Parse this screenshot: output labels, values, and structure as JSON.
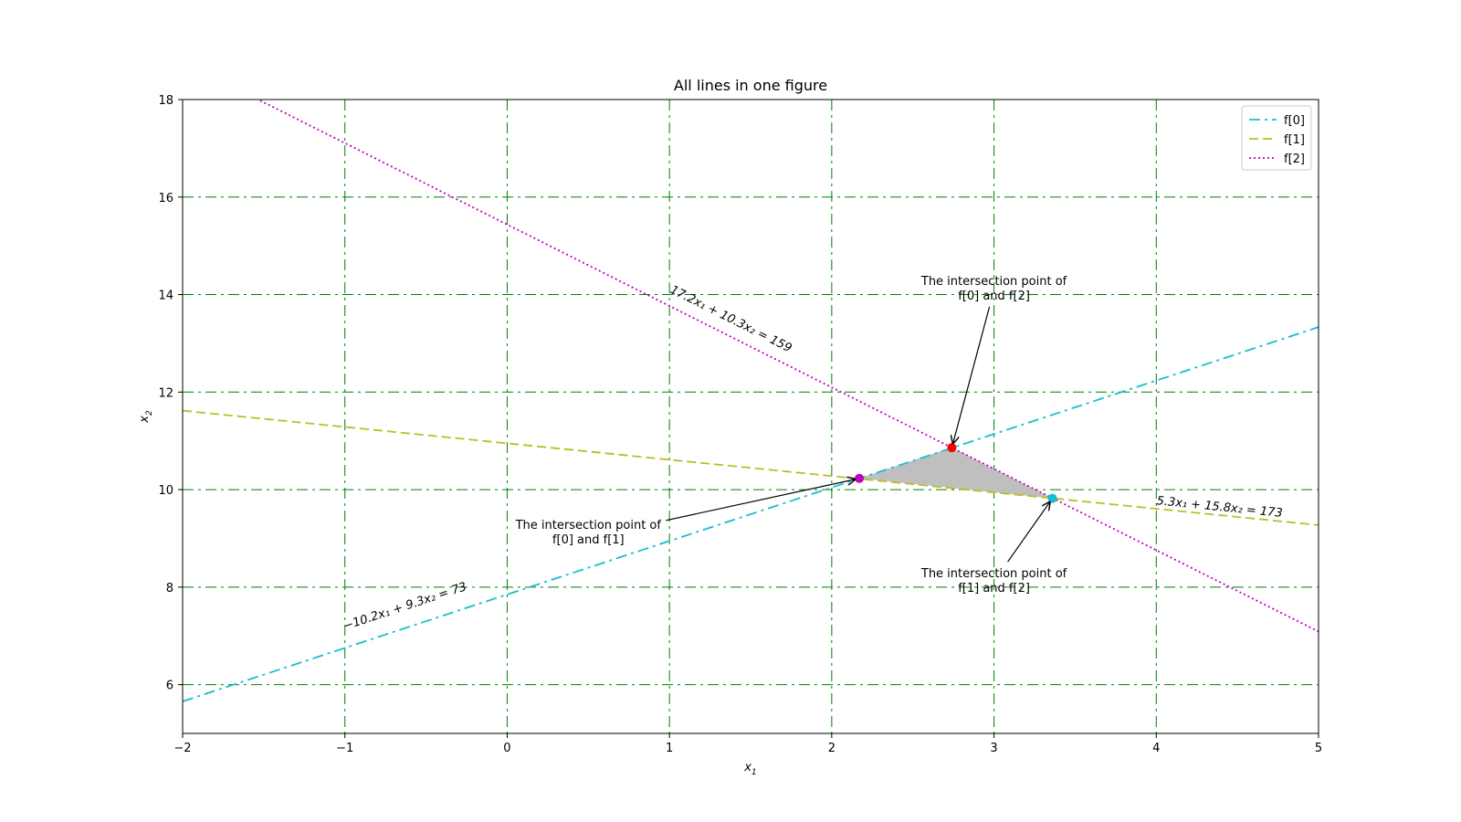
{
  "chart_data": {
    "type": "line",
    "title": "All lines in one figure",
    "xlabel": "x1",
    "ylabel": "x2",
    "xlim": [
      -2,
      5
    ],
    "ylim": [
      5,
      18
    ],
    "xticks": [
      -2,
      -1,
      0,
      1,
      2,
      3,
      4,
      5
    ],
    "yticks": [
      6,
      8,
      10,
      12,
      14,
      16,
      18
    ],
    "xtick_labels": [
      "−2",
      "−1",
      "0",
      "1",
      "2",
      "3",
      "4",
      "5"
    ],
    "ytick_labels": [
      "6",
      "8",
      "10",
      "12",
      "14",
      "16",
      "18"
    ],
    "grid": true,
    "grid_color": "#008000",
    "grid_style": "dash-dot",
    "legend_position": "top-right",
    "series": [
      {
        "name": "f[0]",
        "a": -10.2,
        "b": 9.3,
        "c": 73,
        "color": "#17becf",
        "style": "dash-dot",
        "equation_label": "−10.2x₁ + 9.3x₂ = 73",
        "label_at": [
          -1.0,
          7.12
        ]
      },
      {
        "name": "f[1]",
        "a": 5.3,
        "b": 15.8,
        "c": 173,
        "color": "#bcbd22",
        "style": "dashed",
        "equation_label": "5.3x₁ + 15.8x₂ = 173",
        "label_at": [
          4.0,
          9.7
        ]
      },
      {
        "name": "f[2]",
        "a": 17.2,
        "b": 10.3,
        "c": 159,
        "color": "#bf00bf",
        "style": "dotted",
        "equation_label": "17.2x₁ + 10.3x₂ = 159",
        "label_at": [
          1.0,
          14.05
        ]
      }
    ],
    "intersections": [
      {
        "pair": "f[0] and f[1]",
        "x": 2.17,
        "y": 10.23,
        "color": "#bf00bf",
        "label_line1": "The intersection point of",
        "label_line2": "f[0] and f[1]",
        "label_at": [
          0.5,
          9.2
        ]
      },
      {
        "pair": "f[0] and f[2]",
        "x": 2.74,
        "y": 10.86,
        "color": "#ff0000",
        "label_line1": "The intersection point of",
        "label_line2": "f[0] and f[2]",
        "label_at": [
          3.0,
          14.2
        ]
      },
      {
        "pair": "f[1] and f[2]",
        "x": 3.36,
        "y": 9.82,
        "color": "#17becf",
        "label_line1": "The intersection point of",
        "label_line2": "f[1] and f[2]",
        "label_at": [
          3.0,
          8.2
        ]
      }
    ],
    "shaded_region": {
      "vertices": [
        [
          2.17,
          10.23
        ],
        [
          2.74,
          10.86
        ],
        [
          3.36,
          9.82
        ]
      ],
      "color": "#bfbfbf"
    }
  }
}
